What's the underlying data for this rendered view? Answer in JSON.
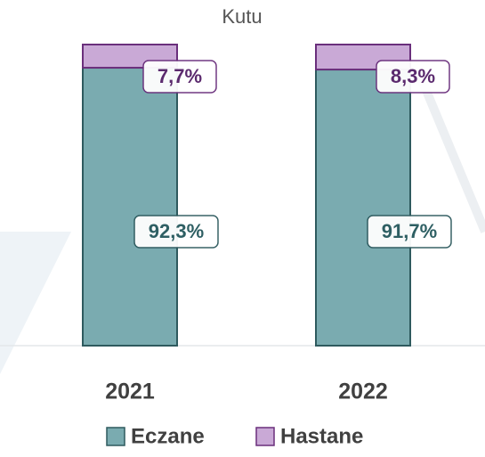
{
  "chart_data": {
    "type": "stacked_bar",
    "title": "Kutu",
    "categories": [
      "2021",
      "2022"
    ],
    "series": [
      {
        "name": "Eczane",
        "color": "#7aabb0",
        "values": [
          92.3,
          91.7
        ],
        "value_labels": [
          "92,3%",
          "91,7%"
        ]
      },
      {
        "name": "Hastane",
        "color": "#c9a9d6",
        "values": [
          7.7,
          8.3
        ],
        "value_labels": [
          "7,7%",
          "8,3%"
        ]
      }
    ]
  }
}
